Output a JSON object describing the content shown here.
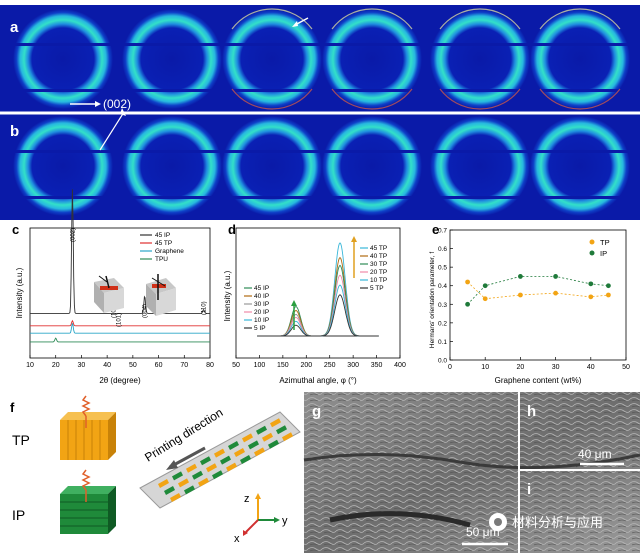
{
  "panels": {
    "a": {
      "label": "a",
      "annotation": "(002)"
    },
    "b": {
      "label": "b"
    },
    "c": {
      "label": "c"
    },
    "d": {
      "label": "d"
    },
    "e": {
      "label": "e"
    },
    "f": {
      "label": "f",
      "tp_label": "TP",
      "ip_label": "IP",
      "printing_direction": "Printing direction",
      "axis_z": "z",
      "axis_x": "x",
      "axis_y": "y"
    },
    "g": {
      "label": "g",
      "scale": "50 μm"
    },
    "h": {
      "label": "h",
      "scale": "40 μm"
    },
    "i": {
      "label": "i"
    }
  },
  "watermark": "材料分析与应用",
  "colors": {
    "saxs_bg": "#0a1aa8",
    "ring": "#2fd4c8",
    "tp_orange": "#f2a414",
    "ip_green": "#1f8a3a"
  },
  "chart_data": [
    {
      "type": "line",
      "panel": "c",
      "xlabel": "2θ (degree)",
      "ylabel": "Intensity (a.u.)",
      "xlim": [
        10,
        80
      ],
      "xticks": [
        10,
        20,
        30,
        40,
        50,
        60,
        70,
        80
      ],
      "peak_labels": [
        {
          "text": "(002)",
          "x": 26.5
        },
        {
          "text": "(100)",
          "x": 42.4
        },
        {
          "text": "(101)",
          "x": 44.5
        },
        {
          "text": "(004)",
          "x": 54.6
        },
        {
          "text": "(110)",
          "x": 77.5
        }
      ],
      "legend_position": "top-right",
      "series": [
        {
          "name": "45 IP",
          "color": "#333333",
          "baseline": 0.36,
          "peaks": [
            [
              26.5,
              1.0
            ],
            [
              54.6,
              0.14
            ],
            [
              77.5,
              0.03
            ]
          ]
        },
        {
          "name": "45 TP",
          "color": "#e03030",
          "baseline": 0.26,
          "peaks": [
            [
              26.5,
              0.04
            ]
          ]
        },
        {
          "name": "Graphene",
          "color": "#2aa6c8",
          "baseline": 0.2,
          "peaks": [
            [
              26.5,
              0.08
            ]
          ]
        },
        {
          "name": "TPU",
          "color": "#2e8b57",
          "baseline": 0.13,
          "peaks": [
            [
              20,
              0.03
            ]
          ]
        }
      ]
    },
    {
      "type": "line",
      "panel": "d",
      "xlabel": "Azimuthal angle, φ (°)",
      "ylabel": "Intensity (a.u.)",
      "xlim": [
        50,
        400
      ],
      "xticks": [
        50,
        100,
        150,
        200,
        250,
        300,
        350,
        400
      ],
      "legend_position": "left and right",
      "series": [
        {
          "name": "45 IP",
          "color": "#2e8b57",
          "group": "IP",
          "center": 178,
          "height": 0.3
        },
        {
          "name": "40 IP",
          "color": "#b06a10",
          "group": "IP",
          "center": 178,
          "height": 0.26
        },
        {
          "name": "30 IP",
          "color": "#9a9a9a",
          "group": "IP",
          "center": 178,
          "height": 0.22
        },
        {
          "name": "20 IP",
          "color": "#f08aa8",
          "group": "IP",
          "center": 178,
          "height": 0.19
        },
        {
          "name": "10 IP",
          "color": "#39b7d8",
          "group": "IP",
          "center": 178,
          "height": 0.15
        },
        {
          "name": "5 IP",
          "color": "#333333",
          "group": "IP",
          "center": 178,
          "height": 0.11
        },
        {
          "name": "45 TP",
          "color": "#39b7d8",
          "group": "TP",
          "center": 272,
          "height": 0.95
        },
        {
          "name": "40 TP",
          "color": "#b06a10",
          "group": "TP",
          "center": 272,
          "height": 0.8
        },
        {
          "name": "30 TP",
          "color": "#2e8b57",
          "group": "TP",
          "center": 272,
          "height": 0.72
        },
        {
          "name": "20 TP",
          "color": "#f08aa8",
          "group": "TP",
          "center": 272,
          "height": 0.62
        },
        {
          "name": "10 TP",
          "color": "#39b7d8",
          "group": "TP",
          "center": 272,
          "height": 0.52
        },
        {
          "name": "5 TP",
          "color": "#333333",
          "group": "TP",
          "center": 272,
          "height": 0.42
        }
      ]
    },
    {
      "type": "scatter",
      "panel": "e",
      "xlabel": "Graphene content (wt%)",
      "ylabel": "Hermans' orientation parameter, f",
      "xlim": [
        0,
        50
      ],
      "ylim": [
        0.0,
        0.7
      ],
      "xticks": [
        0,
        10,
        20,
        30,
        40,
        50
      ],
      "yticks": [
        0.0,
        0.1,
        0.2,
        0.3,
        0.4,
        0.5,
        0.6,
        0.7
      ],
      "legend_position": "top-right",
      "series": [
        {
          "name": "TP",
          "color": "#f2a414",
          "x": [
            5,
            10,
            20,
            30,
            40,
            45
          ],
          "y": [
            0.42,
            0.33,
            0.35,
            0.36,
            0.34,
            0.35
          ]
        },
        {
          "name": "IP",
          "color": "#1f7a3a",
          "x": [
            5,
            10,
            20,
            30,
            40,
            45
          ],
          "y": [
            0.3,
            0.4,
            0.45,
            0.45,
            0.41,
            0.4
          ]
        }
      ]
    }
  ]
}
